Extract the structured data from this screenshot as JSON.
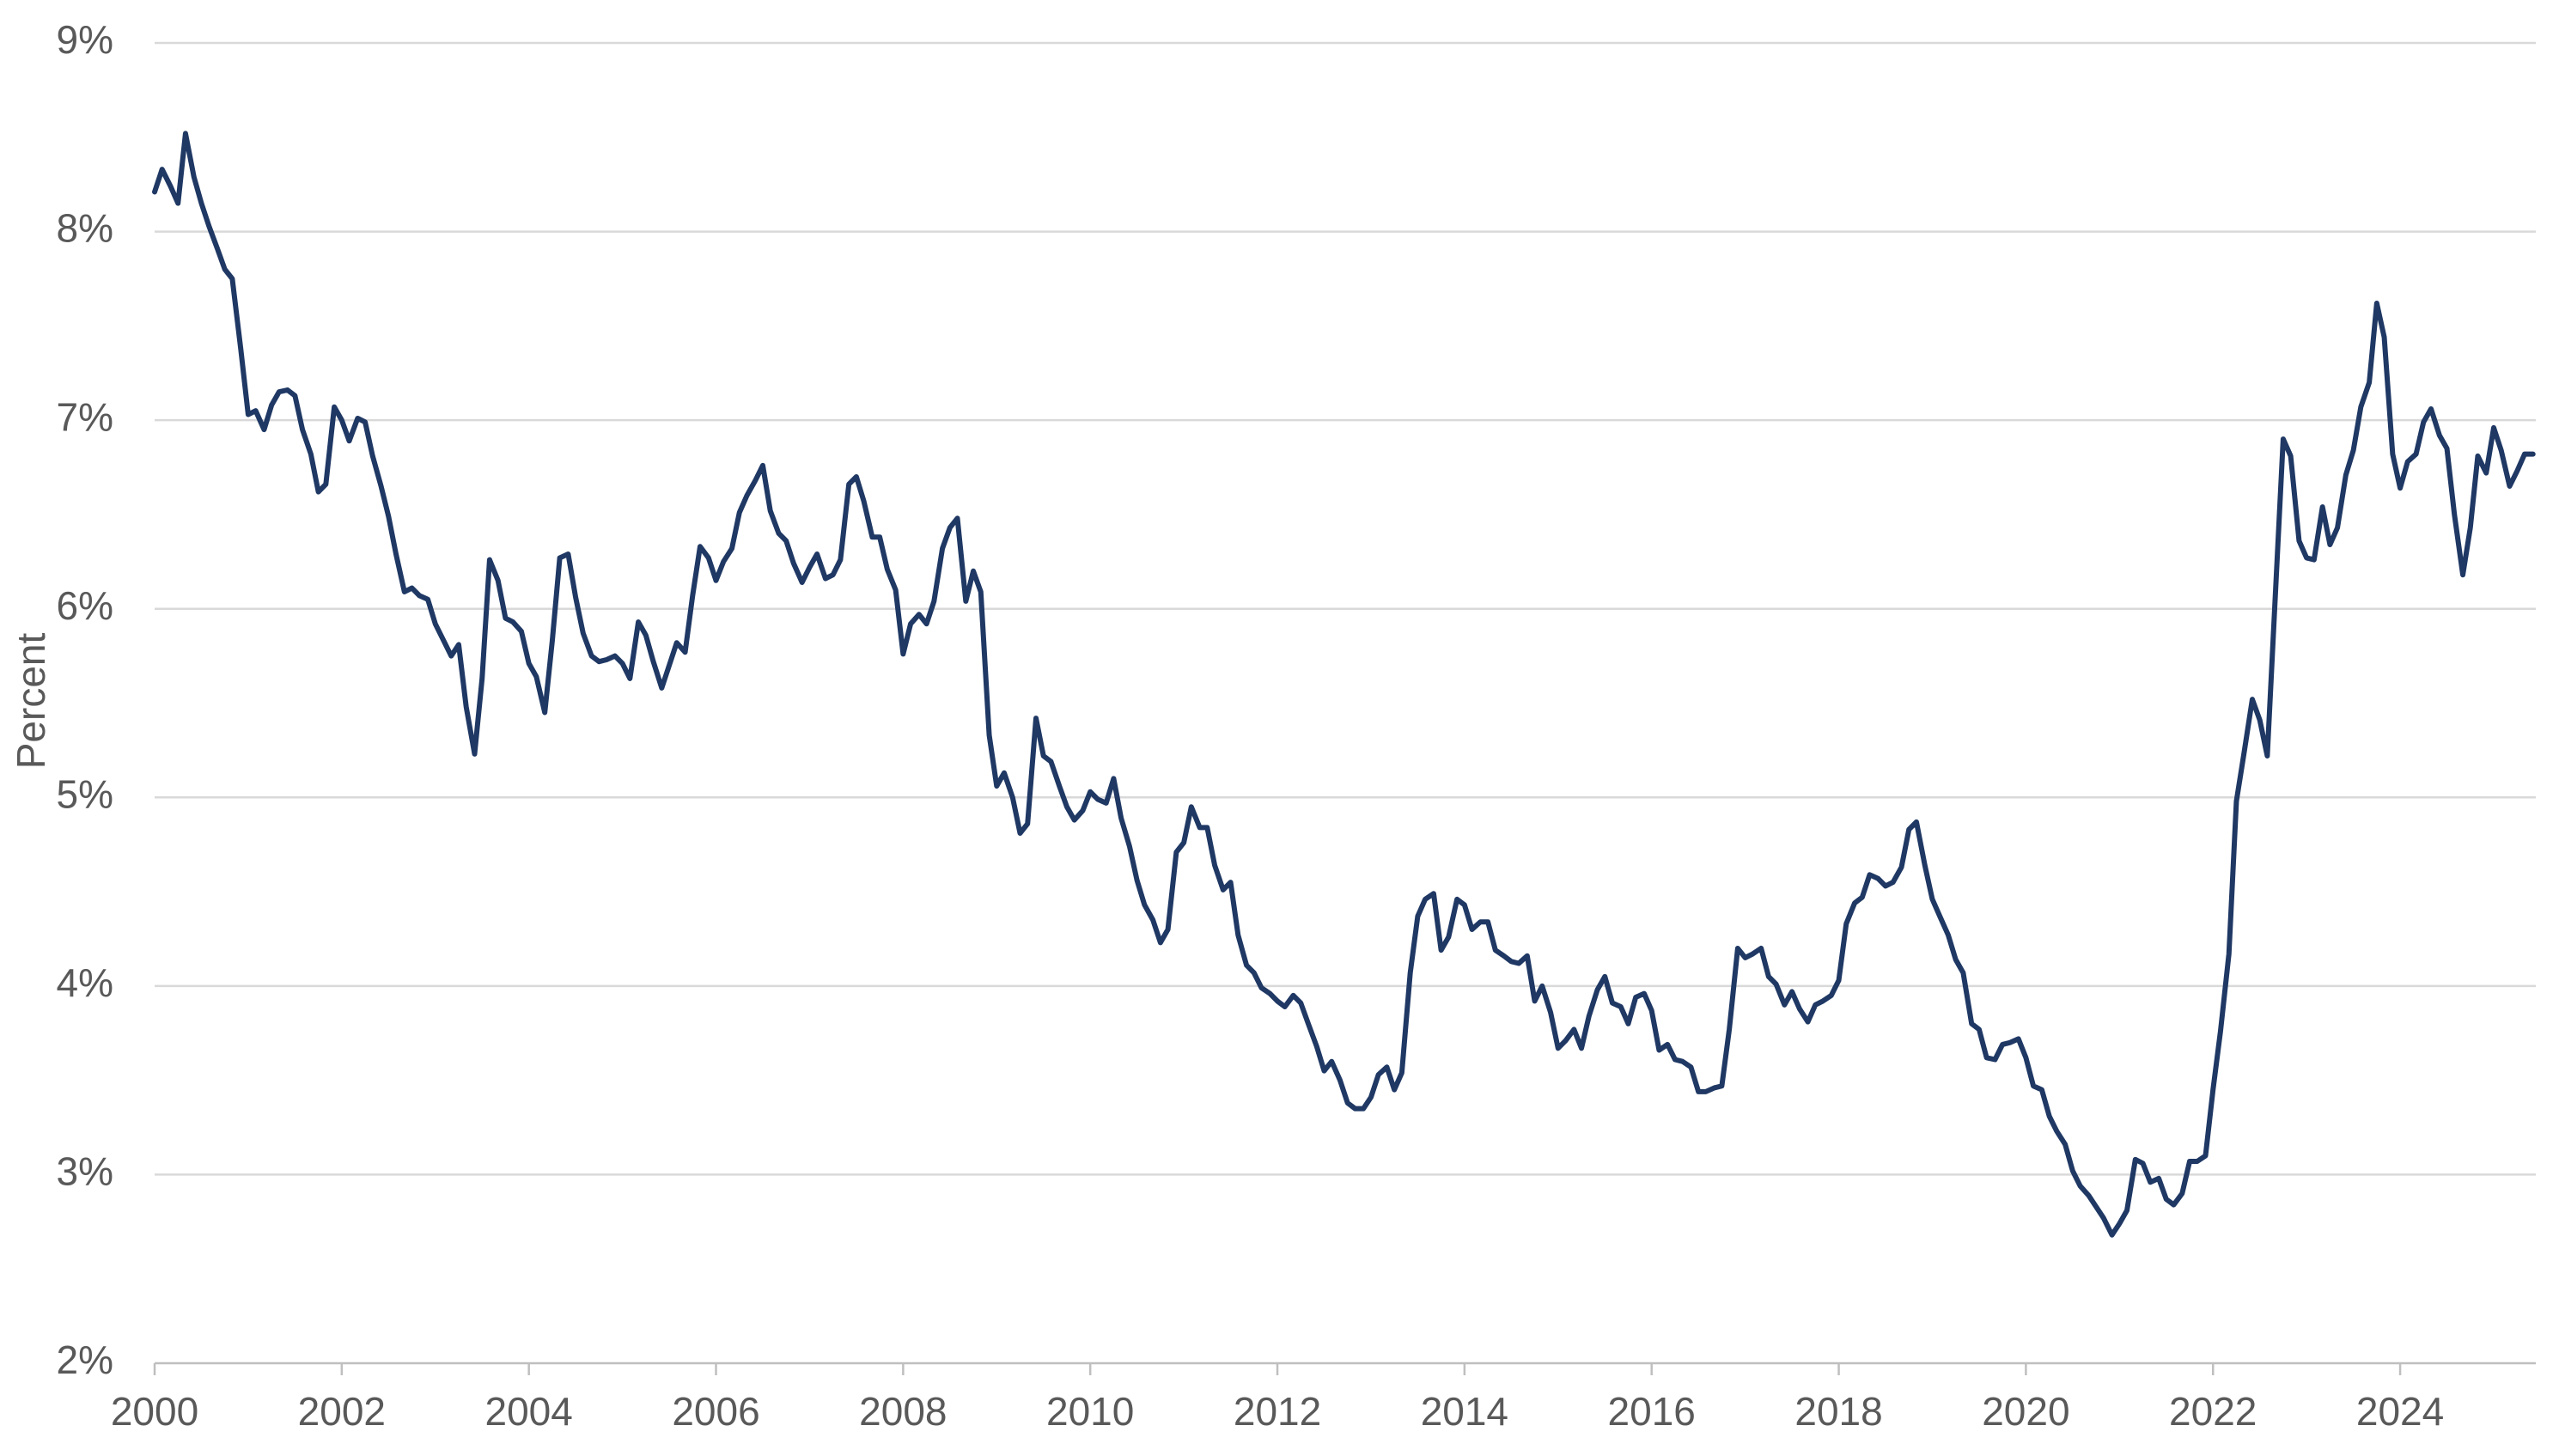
{
  "chart_data": {
    "type": "line",
    "y_label": "Percent",
    "color": "#1f3864",
    "grid": true,
    "xlim": [
      2000,
      2025.45
    ],
    "xticks": [
      2000,
      2002,
      2004,
      2006,
      2008,
      2010,
      2012,
      2014,
      2016,
      2018,
      2020,
      2022,
      2024
    ],
    "ylim": [
      2,
      9
    ],
    "yticks": [
      {
        "value": 2,
        "label": "2%"
      },
      {
        "value": 3,
        "label": "3%"
      },
      {
        "value": 4,
        "label": "4%"
      },
      {
        "value": 5,
        "label": "5%"
      },
      {
        "value": 6,
        "label": "6%"
      },
      {
        "value": 7,
        "label": "7%"
      },
      {
        "value": 8,
        "label": "8%"
      },
      {
        "value": 9,
        "label": "9%"
      }
    ],
    "x": [
      2000.0,
      2000.08,
      2000.17,
      2000.25,
      2000.33,
      2000.42,
      2000.5,
      2000.58,
      2000.67,
      2000.75,
      2000.83,
      2000.92,
      2001.0,
      2001.08,
      2001.17,
      2001.25,
      2001.33,
      2001.42,
      2001.5,
      2001.58,
      2001.67,
      2001.75,
      2001.83,
      2001.92,
      2002.0,
      2002.08,
      2002.17,
      2002.25,
      2002.33,
      2002.42,
      2002.5,
      2002.58,
      2002.67,
      2002.75,
      2002.83,
      2002.92,
      2003.0,
      2003.08,
      2003.17,
      2003.25,
      2003.33,
      2003.42,
      2003.5,
      2003.58,
      2003.67,
      2003.75,
      2003.83,
      2003.92,
      2004.0,
      2004.08,
      2004.17,
      2004.25,
      2004.33,
      2004.42,
      2004.5,
      2004.58,
      2004.67,
      2004.75,
      2004.83,
      2004.92,
      2005.0,
      2005.08,
      2005.17,
      2005.25,
      2005.33,
      2005.42,
      2005.5,
      2005.58,
      2005.67,
      2005.75,
      2005.83,
      2005.92,
      2006.0,
      2006.08,
      2006.17,
      2006.25,
      2006.33,
      2006.42,
      2006.5,
      2006.58,
      2006.67,
      2006.75,
      2006.83,
      2006.92,
      2007.0,
      2007.08,
      2007.17,
      2007.25,
      2007.33,
      2007.42,
      2007.5,
      2007.58,
      2007.67,
      2007.75,
      2007.83,
      2007.92,
      2008.0,
      2008.08,
      2008.17,
      2008.25,
      2008.33,
      2008.42,
      2008.5,
      2008.58,
      2008.67,
      2008.75,
      2008.83,
      2008.92,
      2009.0,
      2009.08,
      2009.17,
      2009.25,
      2009.33,
      2009.42,
      2009.5,
      2009.58,
      2009.67,
      2009.75,
      2009.83,
      2009.92,
      2010.0,
      2010.08,
      2010.17,
      2010.25,
      2010.33,
      2010.42,
      2010.5,
      2010.58,
      2010.67,
      2010.75,
      2010.83,
      2010.92,
      2011.0,
      2011.08,
      2011.17,
      2011.25,
      2011.33,
      2011.42,
      2011.5,
      2011.58,
      2011.67,
      2011.75,
      2011.83,
      2011.92,
      2012.0,
      2012.08,
      2012.17,
      2012.25,
      2012.33,
      2012.42,
      2012.5,
      2012.58,
      2012.67,
      2012.75,
      2012.83,
      2012.92,
      2013.0,
      2013.08,
      2013.17,
      2013.25,
      2013.33,
      2013.42,
      2013.5,
      2013.58,
      2013.67,
      2013.75,
      2013.83,
      2013.92,
      2014.0,
      2014.08,
      2014.17,
      2014.25,
      2014.33,
      2014.42,
      2014.5,
      2014.58,
      2014.67,
      2014.75,
      2014.83,
      2014.92,
      2015.0,
      2015.08,
      2015.17,
      2015.25,
      2015.33,
      2015.42,
      2015.5,
      2015.58,
      2015.67,
      2015.75,
      2015.83,
      2015.92,
      2016.0,
      2016.08,
      2016.17,
      2016.25,
      2016.33,
      2016.42,
      2016.5,
      2016.58,
      2016.67,
      2016.75,
      2016.83,
      2016.92,
      2017.0,
      2017.08,
      2017.17,
      2017.25,
      2017.33,
      2017.42,
      2017.5,
      2017.58,
      2017.67,
      2017.75,
      2017.83,
      2017.92,
      2018.0,
      2018.08,
      2018.17,
      2018.25,
      2018.33,
      2018.42,
      2018.5,
      2018.58,
      2018.67,
      2018.75,
      2018.83,
      2018.92,
      2019.0,
      2019.08,
      2019.17,
      2019.25,
      2019.33,
      2019.42,
      2019.5,
      2019.58,
      2019.67,
      2019.75,
      2019.83,
      2019.92,
      2020.0,
      2020.08,
      2020.17,
      2020.25,
      2020.33,
      2020.42,
      2020.5,
      2020.58,
      2020.67,
      2020.75,
      2020.83,
      2020.92,
      2021.0,
      2021.08,
      2021.17,
      2021.25,
      2021.33,
      2021.42,
      2021.5,
      2021.58,
      2021.67,
      2021.75,
      2021.83,
      2021.92,
      2022.0,
      2022.08,
      2022.17,
      2022.25,
      2022.33,
      2022.42,
      2022.5,
      2022.58,
      2022.67,
      2022.75,
      2022.83,
      2022.92,
      2023.0,
      2023.08,
      2023.17,
      2023.25,
      2023.33,
      2023.42,
      2023.5,
      2023.58,
      2023.67,
      2023.75,
      2023.83,
      2023.92,
      2024.0,
      2024.08,
      2024.17,
      2024.25,
      2024.33,
      2024.42,
      2024.5,
      2024.58,
      2024.67,
      2024.75,
      2024.83,
      2024.92,
      2025.0,
      2025.08,
      2025.17,
      2025.25,
      2025.33,
      2025.42
    ],
    "values": [
      8.21,
      8.33,
      8.24,
      8.15,
      8.52,
      8.29,
      8.15,
      8.03,
      7.91,
      7.8,
      7.75,
      7.38,
      7.03,
      7.05,
      6.95,
      7.08,
      7.15,
      7.16,
      7.13,
      6.95,
      6.82,
      6.62,
      6.66,
      7.07,
      7.0,
      6.89,
      7.01,
      6.99,
      6.81,
      6.65,
      6.49,
      6.29,
      6.09,
      6.11,
      6.07,
      6.05,
      5.92,
      5.84,
      5.75,
      5.81,
      5.48,
      5.23,
      5.63,
      6.26,
      6.15,
      5.95,
      5.93,
      5.88,
      5.71,
      5.64,
      5.45,
      5.83,
      6.27,
      6.29,
      6.06,
      5.87,
      5.75,
      5.72,
      5.73,
      5.75,
      5.71,
      5.63,
      5.93,
      5.86,
      5.72,
      5.58,
      5.7,
      5.82,
      5.77,
      6.07,
      6.33,
      6.27,
      6.15,
      6.25,
      6.32,
      6.51,
      6.6,
      6.68,
      6.76,
      6.52,
      6.4,
      6.36,
      6.24,
      6.14,
      6.22,
      6.29,
      6.16,
      6.18,
      6.26,
      6.66,
      6.7,
      6.57,
      6.38,
      6.38,
      6.21,
      6.1,
      5.76,
      5.92,
      5.97,
      5.92,
      6.04,
      6.32,
      6.43,
      6.48,
      6.04,
      6.2,
      6.09,
      5.33,
      5.06,
      5.13,
      5.0,
      4.81,
      4.86,
      5.42,
      5.22,
      5.19,
      5.06,
      4.95,
      4.88,
      4.93,
      5.03,
      4.99,
      4.97,
      5.1,
      4.89,
      4.74,
      4.56,
      4.43,
      4.35,
      4.23,
      4.3,
      4.71,
      4.76,
      4.95,
      4.84,
      4.84,
      4.64,
      4.51,
      4.55,
      4.27,
      4.11,
      4.07,
      3.99,
      3.96,
      3.92,
      3.89,
      3.95,
      3.91,
      3.8,
      3.68,
      3.55,
      3.6,
      3.5,
      3.38,
      3.35,
      3.35,
      3.41,
      3.53,
      3.57,
      3.45,
      3.54,
      4.07,
      4.37,
      4.46,
      4.49,
      4.19,
      4.26,
      4.46,
      4.43,
      4.3,
      4.34,
      4.34,
      4.19,
      4.16,
      4.13,
      4.12,
      4.16,
      3.92,
      4.0,
      3.86,
      3.67,
      3.71,
      3.77,
      3.67,
      3.84,
      3.98,
      4.05,
      3.91,
      3.89,
      3.8,
      3.94,
      3.96,
      3.87,
      3.66,
      3.69,
      3.61,
      3.6,
      3.57,
      3.44,
      3.44,
      3.46,
      3.47,
      3.77,
      4.2,
      4.15,
      4.17,
      4.2,
      4.05,
      4.01,
      3.9,
      3.97,
      3.88,
      3.81,
      3.9,
      3.92,
      3.95,
      4.03,
      4.33,
      4.44,
      4.47,
      4.59,
      4.57,
      4.53,
      4.55,
      4.63,
      4.83,
      4.87,
      4.64,
      4.46,
      4.37,
      4.27,
      4.14,
      4.07,
      3.8,
      3.77,
      3.62,
      3.61,
      3.69,
      3.7,
      3.72,
      3.62,
      3.47,
      3.45,
      3.31,
      3.23,
      3.16,
      3.02,
      2.94,
      2.89,
      2.83,
      2.77,
      2.68,
      2.74,
      2.81,
      3.08,
      3.06,
      2.96,
      2.98,
      2.87,
      2.84,
      2.9,
      3.07,
      3.07,
      3.1,
      3.45,
      3.76,
      4.17,
      4.98,
      5.23,
      5.52,
      5.41,
      5.22,
      6.11,
      6.9,
      6.81,
      6.36,
      6.27,
      6.26,
      6.54,
      6.34,
      6.43,
      6.71,
      6.84,
      7.07,
      7.2,
      7.62,
      7.44,
      6.82,
      6.64,
      6.78,
      6.82,
      6.99,
      7.06,
      6.92,
      6.85,
      6.5,
      6.18,
      6.43,
      6.81,
      6.72,
      6.96,
      6.84,
      6.65,
      6.73,
      6.82,
      6.82
    ]
  }
}
